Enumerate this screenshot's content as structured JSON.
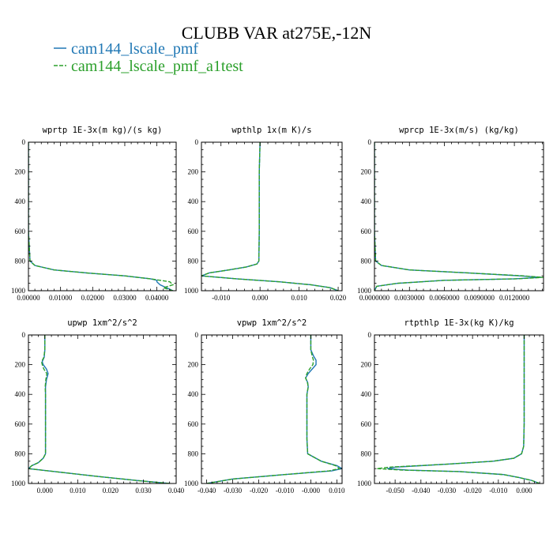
{
  "title": "CLUBB VAR at275E,-12N",
  "colors": {
    "series1": "#1f77b4",
    "series2": "#2ca02c"
  },
  "legend": [
    {
      "label": "cam144_lscale_pmf",
      "color": "#1f77b4",
      "dash": false
    },
    {
      "label": "cam144_lscale_pmf_a1test",
      "color": "#2ca02c",
      "dash": true
    }
  ],
  "chart_data": [
    {
      "type": "line",
      "title": "wprtp  1E-3x(m kg)/(s kg)",
      "xlim": [
        0,
        0.046
      ],
      "ylim": [
        1000,
        0
      ],
      "xticks": [
        0,
        0.01,
        0.02,
        0.03,
        0.04
      ],
      "xticklabels": [
        "0.00000",
        "0.01000",
        "0.02000",
        "0.03000",
        "0.04000"
      ],
      "yticks": [
        0,
        200,
        400,
        600,
        800,
        1000
      ],
      "series": [
        {
          "name": "cam144_lscale_pmf",
          "y": [
            0,
            200,
            400,
            600,
            800,
            830,
            860,
            880,
            900,
            920,
            930,
            940,
            960,
            980,
            1000
          ],
          "x": [
            0,
            0,
            0,
            0,
            0.0005,
            0.002,
            0.008,
            0.018,
            0.03,
            0.038,
            0.04,
            0.04,
            0.041,
            0.043,
            0.045
          ]
        },
        {
          "name": "cam144_lscale_pmf_a1test",
          "y": [
            0,
            200,
            400,
            600,
            800,
            830,
            860,
            880,
            900,
            920,
            930,
            940,
            960,
            980,
            1000
          ],
          "x": [
            0,
            0,
            0,
            0,
            0.0005,
            0.002,
            0.008,
            0.018,
            0.03,
            0.038,
            0.041,
            0.044,
            0.045,
            0.042,
            0.045
          ]
        }
      ]
    },
    {
      "type": "line",
      "title": "wpthlp  1x(m K)/s",
      "xlim": [
        -0.015,
        0.021
      ],
      "ylim": [
        1000,
        0
      ],
      "xticks": [
        -0.01,
        0,
        0.01,
        0.02
      ],
      "xticklabels": [
        "-0.010",
        "0.000",
        "0.010",
        "0.020"
      ],
      "yticks": [
        0,
        200,
        400,
        600,
        800,
        1000
      ],
      "series": [
        {
          "name": "cam144_lscale_pmf",
          "y": [
            0,
            200,
            400,
            600,
            800,
            820,
            840,
            860,
            880,
            900,
            920,
            940,
            960,
            980,
            1000
          ],
          "x": [
            0,
            -0.0002,
            -0.0002,
            -0.0002,
            -0.0003,
            -0.0008,
            -0.0035,
            -0.008,
            -0.013,
            -0.015,
            -0.006,
            0.005,
            0.013,
            0.018,
            0.02
          ]
        },
        {
          "name": "cam144_lscale_pmf_a1test",
          "y": [
            0,
            200,
            400,
            600,
            800,
            820,
            840,
            860,
            880,
            900,
            920,
            940,
            960,
            980,
            1000
          ],
          "x": [
            0,
            -0.0002,
            -0.0002,
            -0.0002,
            -0.0003,
            -0.0008,
            -0.0035,
            -0.008,
            -0.013,
            -0.015,
            -0.006,
            0.005,
            0.013,
            0.018,
            0.02
          ]
        }
      ]
    },
    {
      "type": "line",
      "title": "wprcp  1E-3x(m/s) (kg/kg)",
      "xlim": [
        0,
        0.0145
      ],
      "ylim": [
        1000,
        0
      ],
      "xticks": [
        0,
        0.003,
        0.006,
        0.009,
        0.012
      ],
      "xticklabels": [
        "0.0000000",
        "0.0030000",
        "0.0060000",
        "0.0090000",
        "0.0120000"
      ],
      "yticks": [
        0,
        200,
        400,
        600,
        800,
        1000
      ],
      "series": [
        {
          "name": "cam144_lscale_pmf",
          "y": [
            0,
            200,
            400,
            600,
            800,
            830,
            860,
            880,
            900,
            910,
            920,
            930,
            950,
            970,
            1000
          ],
          "x": [
            0,
            0,
            0,
            0,
            0.0001,
            0.0006,
            0.003,
            0.008,
            0.0125,
            0.0143,
            0.012,
            0.006,
            0.002,
            0.0002,
            0
          ]
        },
        {
          "name": "cam144_lscale_pmf_a1test",
          "y": [
            0,
            200,
            400,
            600,
            800,
            830,
            860,
            880,
            900,
            910,
            920,
            930,
            950,
            970,
            1000
          ],
          "x": [
            0,
            0,
            0,
            0,
            0.0001,
            0.0006,
            0.003,
            0.008,
            0.0128,
            0.0145,
            0.0122,
            0.006,
            0.002,
            0.0002,
            0
          ]
        }
      ]
    },
    {
      "type": "line",
      "title": "upwp  1xm^2/s^2",
      "xlim": [
        -0.005,
        0.04
      ],
      "ylim": [
        1000,
        0
      ],
      "xticks": [
        0,
        0.01,
        0.02,
        0.03,
        0.04
      ],
      "xticklabels": [
        "0.000",
        "0.010",
        "0.020",
        "0.030",
        "0.040"
      ],
      "yticks": [
        0,
        200,
        400,
        600,
        800,
        1000
      ],
      "series": [
        {
          "name": "cam144_lscale_pmf",
          "y": [
            0,
            100,
            150,
            180,
            200,
            230,
            260,
            300,
            350,
            400,
            600,
            800,
            830,
            860,
            880,
            900,
            920,
            950,
            980,
            1000
          ],
          "x": [
            0,
            0,
            -0.0002,
            -0.0008,
            -0.0005,
            0.0005,
            0.001,
            0.0005,
            0.0002,
            0.0002,
            0.0002,
            0.0002,
            -0.0005,
            -0.002,
            -0.004,
            -0.005,
            0.003,
            0.015,
            0.028,
            0.038
          ]
        },
        {
          "name": "cam144_lscale_pmf_a1test",
          "y": [
            0,
            100,
            150,
            180,
            200,
            230,
            260,
            300,
            350,
            400,
            600,
            800,
            830,
            860,
            880,
            900,
            920,
            950,
            980,
            1000
          ],
          "x": [
            0,
            0,
            -0.0003,
            -0.001,
            -0.0008,
            -0.0003,
            0.0006,
            0.0003,
            0.0001,
            0.0002,
            0.0002,
            0.0002,
            -0.0005,
            -0.002,
            -0.004,
            -0.005,
            0.003,
            0.015,
            0.028,
            0.038
          ]
        }
      ]
    },
    {
      "type": "line",
      "title": "vpwp  1xm^2/s^2",
      "xlim": [
        -0.042,
        0.012
      ],
      "ylim": [
        1000,
        0
      ],
      "xticks": [
        -0.04,
        -0.03,
        -0.02,
        -0.01,
        0,
        0.01
      ],
      "xticklabels": [
        "-0.040",
        "-0.030",
        "-0.020",
        "-0.010",
        "-0.000",
        "0.010"
      ],
      "yticks": [
        0,
        200,
        400,
        600,
        800,
        1000
      ],
      "series": [
        {
          "name": "cam144_lscale_pmf",
          "y": [
            0,
            100,
            140,
            170,
            200,
            230,
            260,
            290,
            320,
            350,
            400,
            500,
            700,
            800,
            850,
            880,
            900,
            915,
            940,
            970,
            1000
          ],
          "x": [
            0,
            0,
            0.001,
            0.002,
            0.002,
            0.0005,
            -0.001,
            -0.002,
            -0.0012,
            -0.001,
            -0.0015,
            -0.0015,
            -0.0015,
            -0.0012,
            0.004,
            0.01,
            0.012,
            0.008,
            -0.01,
            -0.03,
            -0.04
          ]
        },
        {
          "name": "cam144_lscale_pmf_a1test",
          "y": [
            0,
            100,
            140,
            170,
            200,
            230,
            260,
            290,
            320,
            350,
            400,
            500,
            700,
            800,
            850,
            880,
            900,
            915,
            940,
            970,
            1000
          ],
          "x": [
            0,
            0,
            0.0005,
            0.001,
            0.0008,
            -0.0005,
            -0.0015,
            -0.002,
            -0.0013,
            -0.001,
            -0.0015,
            -0.0015,
            -0.0015,
            -0.0012,
            0.004,
            0.0095,
            0.011,
            0.007,
            -0.01,
            -0.03,
            -0.04
          ]
        }
      ]
    },
    {
      "type": "line",
      "title": "rtpthlp  1E-3x(kg K)/kg",
      "xlim": [
        -0.058,
        0.0075
      ],
      "ylim": [
        1000,
        0
      ],
      "xticks": [
        -0.05,
        -0.04,
        -0.03,
        -0.02,
        -0.01,
        0
      ],
      "xticklabels": [
        "-0.050",
        "-0.040",
        "-0.030",
        "-0.020",
        "-0.010",
        "0.000"
      ],
      "yticks": [
        0,
        200,
        400,
        600,
        800,
        1000
      ],
      "series": [
        {
          "name": "cam144_lscale_pmf",
          "y": [
            0,
            200,
            400,
            600,
            750,
            800,
            830,
            850,
            870,
            890,
            900,
            910,
            920,
            940,
            960,
            980,
            1000
          ],
          "x": [
            0,
            0,
            0,
            0,
            -0.0002,
            -0.001,
            -0.004,
            -0.012,
            -0.03,
            -0.05,
            -0.053,
            -0.045,
            -0.025,
            -0.008,
            -0.002,
            0.003,
            0.006
          ]
        },
        {
          "name": "cam144_lscale_pmf_a1test",
          "y": [
            0,
            200,
            400,
            600,
            750,
            800,
            830,
            850,
            870,
            890,
            900,
            910,
            920,
            940,
            960,
            980,
            1000
          ],
          "x": [
            0,
            0,
            0,
            0,
            -0.0002,
            -0.001,
            -0.004,
            -0.012,
            -0.03,
            -0.052,
            -0.057,
            -0.047,
            -0.025,
            -0.008,
            -0.002,
            0.003,
            0.006
          ]
        }
      ]
    }
  ]
}
